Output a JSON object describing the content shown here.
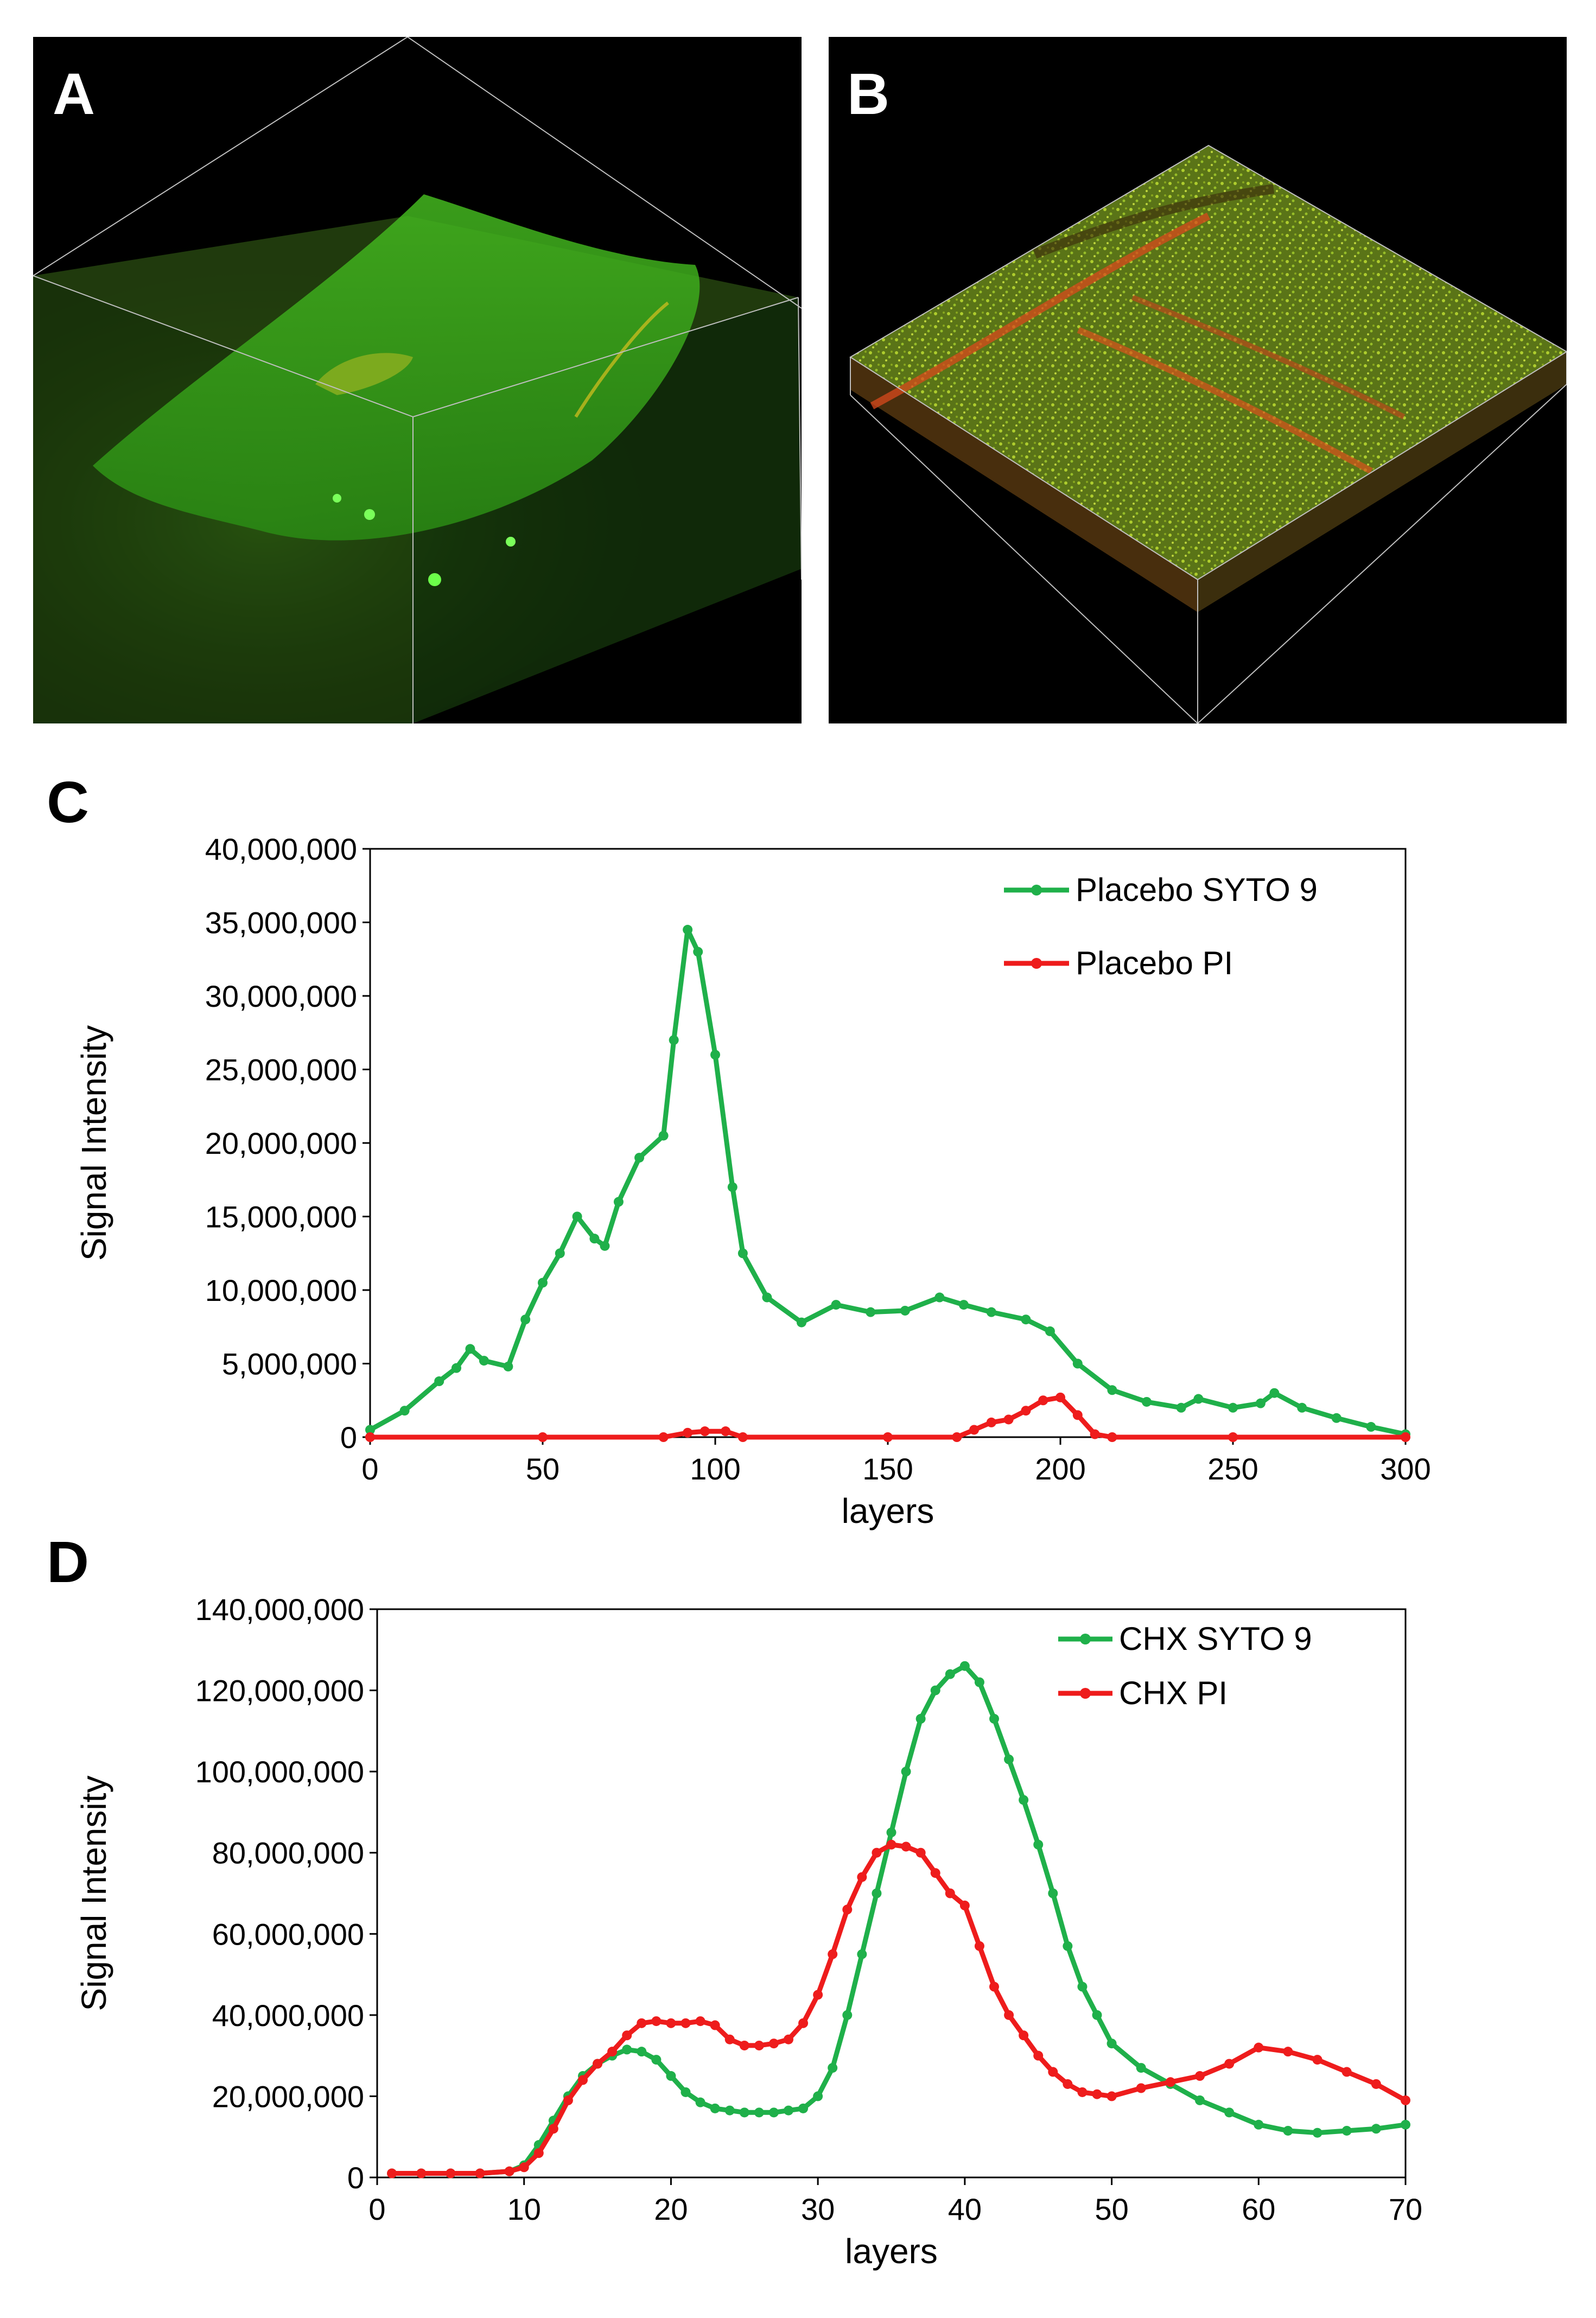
{
  "panels": {
    "a": {
      "letter": "A"
    },
    "b": {
      "letter": "B"
    },
    "c": {
      "letter": "C"
    },
    "d": {
      "letter": "D"
    }
  },
  "colors": {
    "green": "#1fb04a",
    "red": "#ee1c1c",
    "axis": "#000000"
  },
  "chart_data": [
    {
      "id": "C",
      "type": "line",
      "xlabel": "layers",
      "ylabel": "Signal Intensity",
      "xlim": [
        0,
        300
      ],
      "ylim": [
        0,
        40000000
      ],
      "xticks": [
        0,
        50,
        100,
        150,
        200,
        250,
        300
      ],
      "yticks": [
        0,
        5000000,
        10000000,
        15000000,
        20000000,
        25000000,
        30000000,
        35000000,
        40000000
      ],
      "xtick_labels": [
        "0",
        "50",
        "100",
        "150",
        "200",
        "250",
        "300"
      ],
      "ytick_labels": [
        "0",
        "5,000,000",
        "10,000,000",
        "15,000,000",
        "20,000,000",
        "25,000,000",
        "30,000,000",
        "35,000,000",
        "40,000,000"
      ],
      "legend_position": "top-right",
      "series": [
        {
          "name": "Placebo SYTO 9",
          "color": "#1fb04a",
          "x": [
            0,
            10,
            20,
            25,
            29,
            33,
            40,
            45,
            50,
            55,
            60,
            65,
            68,
            72,
            78,
            85,
            88,
            92,
            95,
            100,
            105,
            108,
            115,
            125,
            135,
            145,
            155,
            165,
            172,
            180,
            190,
            197,
            205,
            215,
            225,
            235,
            240,
            250,
            258,
            262,
            270,
            280,
            290,
            300
          ],
          "y": [
            500000,
            1800000,
            3800000,
            4700000,
            6000000,
            5200000,
            4800000,
            8000000,
            10500000,
            12500000,
            15000000,
            13500000,
            13000000,
            16000000,
            19000000,
            20500000,
            27000000,
            34500000,
            33000000,
            26000000,
            17000000,
            12500000,
            9500000,
            7800000,
            9000000,
            8500000,
            8600000,
            9500000,
            9000000,
            8500000,
            8000000,
            7200000,
            5000000,
            3200000,
            2400000,
            2000000,
            2600000,
            2000000,
            2300000,
            3000000,
            2000000,
            1300000,
            700000,
            200000
          ]
        },
        {
          "name": "Placebo PI",
          "color": "#ee1c1c",
          "x": [
            0,
            50,
            85,
            92,
            97,
            103,
            108,
            150,
            170,
            175,
            180,
            185,
            190,
            195,
            200,
            205,
            210,
            215,
            250,
            300
          ],
          "y": [
            0,
            0,
            0,
            300000,
            400000,
            400000,
            0,
            0,
            0,
            500000,
            1000000,
            1200000,
            1800000,
            2500000,
            2700000,
            1500000,
            200000,
            0,
            0,
            0
          ]
        }
      ]
    },
    {
      "id": "D",
      "type": "line",
      "xlabel": "layers",
      "ylabel": "Signal Intensity",
      "xlim": [
        0,
        70
      ],
      "ylim": [
        0,
        140000000
      ],
      "xticks": [
        0,
        10,
        20,
        30,
        40,
        50,
        60,
        70
      ],
      "yticks": [
        0,
        20000000,
        40000000,
        60000000,
        80000000,
        100000000,
        120000000,
        140000000
      ],
      "xtick_labels": [
        "0",
        "10",
        "20",
        "30",
        "40",
        "50",
        "60",
        "70"
      ],
      "ytick_labels": [
        "0",
        "20,000,000",
        "40,000,000",
        "60,000,000",
        "80,000,000",
        "100,000,000",
        "120,000,000",
        "140,000,000"
      ],
      "legend_position": "top-right",
      "series": [
        {
          "name": "CHX SYTO 9",
          "color": "#1fb04a",
          "x": [
            1,
            3,
            5,
            7,
            9,
            10,
            11,
            12,
            13,
            14,
            15,
            16,
            17,
            18,
            19,
            20,
            21,
            22,
            23,
            24,
            25,
            26,
            27,
            28,
            29,
            30,
            31,
            32,
            33,
            34,
            35,
            36,
            37,
            38,
            39,
            40,
            41,
            42,
            43,
            44,
            45,
            46,
            47,
            48,
            49,
            50,
            52,
            54,
            56,
            58,
            60,
            62,
            64,
            66,
            68,
            70
          ],
          "y": [
            1000000,
            1000000,
            1000000,
            1000000,
            1500000,
            3000000,
            8000000,
            14000000,
            20000000,
            25000000,
            28000000,
            30000000,
            31500000,
            31000000,
            29000000,
            25000000,
            21000000,
            18500000,
            17000000,
            16500000,
            16000000,
            16000000,
            16000000,
            16500000,
            17000000,
            20000000,
            27000000,
            40000000,
            55000000,
            70000000,
            85000000,
            100000000,
            113000000,
            120000000,
            124000000,
            126000000,
            122000000,
            113000000,
            103000000,
            93000000,
            82000000,
            70000000,
            57000000,
            47000000,
            40000000,
            33000000,
            27000000,
            23000000,
            19000000,
            16000000,
            13000000,
            11500000,
            11000000,
            11500000,
            12000000,
            13000000
          ]
        },
        {
          "name": "CHX PI",
          "color": "#ee1c1c",
          "x": [
            1,
            3,
            5,
            7,
            9,
            10,
            11,
            12,
            13,
            14,
            15,
            16,
            17,
            18,
            19,
            20,
            21,
            22,
            23,
            24,
            25,
            26,
            27,
            28,
            29,
            30,
            31,
            32,
            33,
            34,
            35,
            36,
            37,
            38,
            39,
            40,
            41,
            42,
            43,
            44,
            45,
            46,
            47,
            48,
            49,
            50,
            52,
            54,
            56,
            58,
            60,
            62,
            64,
            66,
            68,
            70
          ],
          "y": [
            1000000,
            1000000,
            1000000,
            1000000,
            1500000,
            2500000,
            6000000,
            12000000,
            19000000,
            24000000,
            28000000,
            31000000,
            35000000,
            38000000,
            38500000,
            38000000,
            38000000,
            38500000,
            37500000,
            34000000,
            32500000,
            32500000,
            33000000,
            34000000,
            38000000,
            45000000,
            55000000,
            66000000,
            74000000,
            80000000,
            82000000,
            81500000,
            80000000,
            75000000,
            70000000,
            67000000,
            57000000,
            47000000,
            40000000,
            35000000,
            30000000,
            26000000,
            23000000,
            21000000,
            20500000,
            20000000,
            22000000,
            23500000,
            25000000,
            28000000,
            32000000,
            31000000,
            29000000,
            26000000,
            23000000,
            19000000
          ]
        }
      ]
    }
  ]
}
